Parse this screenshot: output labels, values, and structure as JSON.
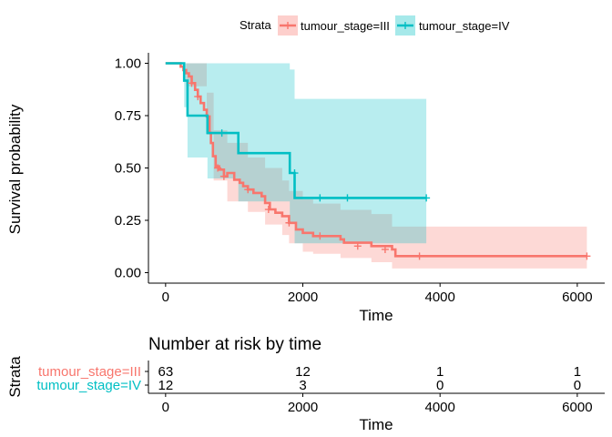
{
  "chart_data": [
    {
      "type": "line",
      "subtype": "kaplan-meier",
      "xlabel": "Time",
      "ylabel": "Survival probability",
      "xlim": [
        -250,
        6400
      ],
      "ylim": [
        -0.05,
        1.05
      ],
      "x_ticks": [
        0,
        2000,
        4000,
        6000
      ],
      "x_tick_labels": [
        "0",
        "2000",
        "4000",
        "6000"
      ],
      "y_ticks": [
        0,
        0.25,
        0.5,
        0.75,
        1.0
      ],
      "y_tick_labels": [
        "0.00",
        "0.25",
        "0.50",
        "0.75",
        "1.00"
      ],
      "grid": false,
      "legend": {
        "title": "Strata",
        "position": "top",
        "entries": [
          "tumour_stage=III",
          "tumour_stage=IV"
        ]
      },
      "series": [
        {
          "name": "tumour_stage=III",
          "color": "#F8766D",
          "band_color": "#F8766D",
          "steps": [
            [
              0,
              1.0
            ],
            [
              220,
              0.984
            ],
            [
              260,
              0.968
            ],
            [
              300,
              0.952
            ],
            [
              340,
              0.937
            ],
            [
              380,
              0.905
            ],
            [
              430,
              0.873
            ],
            [
              470,
              0.841
            ],
            [
              510,
              0.81
            ],
            [
              560,
              0.778
            ],
            [
              600,
              0.746
            ],
            [
              640,
              0.667
            ],
            [
              660,
              0.619
            ],
            [
              690,
              0.556
            ],
            [
              730,
              0.508
            ],
            [
              780,
              0.492
            ],
            [
              850,
              0.46
            ],
            [
              900,
              0.476
            ],
            [
              1000,
              0.444
            ],
            [
              1080,
              0.429
            ],
            [
              1130,
              0.413
            ],
            [
              1200,
              0.397
            ],
            [
              1280,
              0.381
            ],
            [
              1400,
              0.365
            ],
            [
              1450,
              0.333
            ],
            [
              1520,
              0.302
            ],
            [
              1600,
              0.286
            ],
            [
              1700,
              0.27
            ],
            [
              1800,
              0.238
            ],
            [
              1900,
              0.206
            ],
            [
              2000,
              0.19
            ],
            [
              2150,
              0.175
            ],
            [
              2550,
              0.159
            ],
            [
              2600,
              0.143
            ],
            [
              3000,
              0.127
            ],
            [
              3300,
              0.111
            ],
            [
              3350,
              0.079
            ],
            [
              6140,
              0.079
            ]
          ],
          "band_upper": [
            [
              0,
              1.0
            ],
            [
              300,
              1.0
            ],
            [
              600,
              0.86
            ],
            [
              700,
              0.68
            ],
            [
              900,
              0.62
            ],
            [
              1200,
              0.55
            ],
            [
              1450,
              0.5
            ],
            [
              1700,
              0.44
            ],
            [
              1800,
              0.39
            ],
            [
              2000,
              0.35
            ],
            [
              2150,
              0.33
            ],
            [
              2550,
              0.3
            ],
            [
              3000,
              0.28
            ],
            [
              3300,
              0.22
            ],
            [
              6140,
              0.22
            ]
          ],
          "band_lower": [
            [
              0,
              1.0
            ],
            [
              300,
              0.89
            ],
            [
              600,
              0.66
            ],
            [
              700,
              0.44
            ],
            [
              900,
              0.34
            ],
            [
              1200,
              0.29
            ],
            [
              1450,
              0.23
            ],
            [
              1700,
              0.18
            ],
            [
              1800,
              0.14
            ],
            [
              2000,
              0.1
            ],
            [
              2150,
              0.09
            ],
            [
              2550,
              0.07
            ],
            [
              3000,
              0.05
            ],
            [
              3300,
              0.02
            ],
            [
              6140,
              0.02
            ]
          ],
          "censor_points": [
            [
              380,
              0.905
            ],
            [
              470,
              0.841
            ],
            [
              760,
              0.5
            ],
            [
              850,
              0.46
            ],
            [
              1200,
              0.397
            ],
            [
              1500,
              0.302
            ],
            [
              1800,
              0.238
            ],
            [
              2250,
              0.175
            ],
            [
              2800,
              0.127
            ],
            [
              3200,
              0.111
            ],
            [
              3700,
              0.079
            ],
            [
              6140,
              0.079
            ]
          ]
        },
        {
          "name": "tumour_stage=IV",
          "color": "#00BFC4",
          "band_color": "#00BFC4",
          "steps": [
            [
              0,
              1.0
            ],
            [
              270,
              0.917
            ],
            [
              320,
              0.75
            ],
            [
              610,
              0.667
            ],
            [
              1060,
              0.571
            ],
            [
              1810,
              0.476
            ],
            [
              1880,
              0.357
            ],
            [
              3800,
              0.357
            ]
          ],
          "band_upper": [
            [
              0,
              1.0
            ],
            [
              270,
              1.0
            ],
            [
              1060,
              1.0
            ],
            [
              1810,
              0.97
            ],
            [
              1880,
              0.83
            ],
            [
              3800,
              0.83
            ]
          ],
          "band_lower": [
            [
              0,
              1.0
            ],
            [
              270,
              0.79
            ],
            [
              320,
              0.55
            ],
            [
              610,
              0.45
            ],
            [
              1060,
              0.34
            ],
            [
              1810,
              0.24
            ],
            [
              1880,
              0.14
            ],
            [
              3800,
              0.14
            ]
          ],
          "censor_points": [
            [
              820,
              0.667
            ],
            [
              1880,
              0.476
            ],
            [
              2250,
              0.357
            ],
            [
              2650,
              0.357
            ],
            [
              3800,
              0.357
            ]
          ]
        }
      ]
    },
    {
      "type": "table",
      "title": "Number at risk by time",
      "xlabel": "Time",
      "ylabel": "Strata",
      "x_ticks": [
        0,
        2000,
        4000,
        6000
      ],
      "x_tick_labels": [
        "0",
        "2000",
        "4000",
        "6000"
      ],
      "rows": [
        {
          "name": "tumour_stage=III",
          "color": "#F8766D",
          "values": [
            "63",
            "12",
            "1",
            "1"
          ]
        },
        {
          "name": "tumour_stage=IV",
          "color": "#00BFC4",
          "values": [
            "12",
            "3",
            "0",
            "0"
          ]
        }
      ]
    }
  ]
}
